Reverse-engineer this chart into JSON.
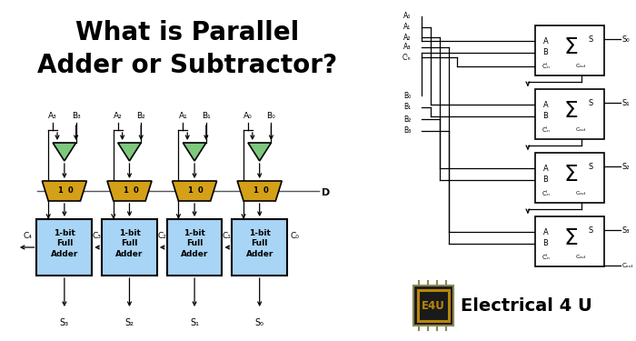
{
  "title_line1": "What is Parallel",
  "title_line2": "Adder or Subtractor?",
  "title_fontsize": 20,
  "title_fontweight": "bold",
  "bg_color": "#ffffff",
  "adder_fill": "#a8d4f5",
  "adder_stroke": "#000000",
  "mux_fill": "#d4a017",
  "mux_stroke": "#000000",
  "xor_fill": "#7ec87e",
  "xor_stroke": "#000000",
  "logo_bg": "#1a1a1a",
  "logo_border": "#b8860b",
  "logo_text_color": "#b8860b",
  "brand_text": "Electrical 4 U",
  "brand_fontsize": 14
}
